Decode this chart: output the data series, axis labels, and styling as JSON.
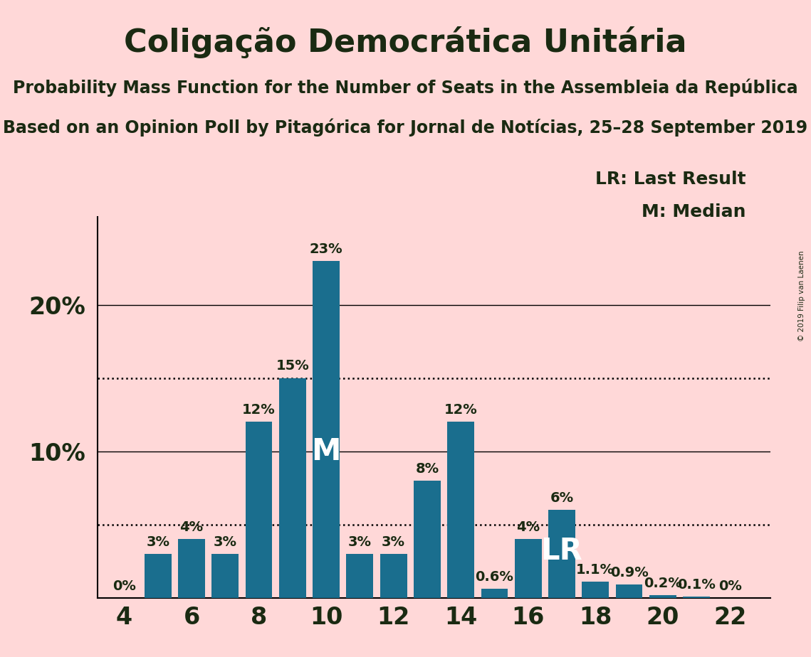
{
  "title": "Coligação Democrática Unitária",
  "subtitle1": "Probability Mass Function for the Number of Seats in the Assembleia da República",
  "subtitle2": "Based on an Opinion Poll by Pitagórica for Jornal de Notícias, 25–28 September 2019",
  "copyright": "© 2019 Filip van Laenen",
  "background_color": "#ffd8d8",
  "bar_color": "#1a6e8e",
  "seats": [
    4,
    5,
    6,
    7,
    8,
    9,
    10,
    11,
    12,
    13,
    14,
    15,
    16,
    17,
    18,
    19,
    20,
    21,
    22
  ],
  "probabilities": [
    0.0,
    3.0,
    4.0,
    3.0,
    12.0,
    15.0,
    23.0,
    3.0,
    3.0,
    8.0,
    12.0,
    0.6,
    4.0,
    6.0,
    1.1,
    0.9,
    0.2,
    0.1,
    0.0
  ],
  "bar_labels": [
    "0%",
    "3%",
    "4%",
    "3%",
    "12%",
    "15%",
    "23%",
    "3%",
    "3%",
    "8%",
    "12%",
    "0.6%",
    "4%",
    "6%",
    "1.1%",
    "0.9%",
    "0.2%",
    "0.1%",
    "0%"
  ],
  "median_seat": 10,
  "lr_seat": 17,
  "dotted_lines": [
    5.0,
    15.0
  ],
  "solid_lines": [
    10.0,
    20.0
  ],
  "ylim": [
    0,
    26
  ],
  "xticks": [
    4,
    6,
    8,
    10,
    12,
    14,
    16,
    18,
    20,
    22
  ],
  "title_fontsize": 32,
  "subtitle_fontsize": 17,
  "axis_tick_fontsize": 24,
  "bar_label_fontsize": 14,
  "annotation_fontsize": 30,
  "legend_fontsize": 18,
  "lr_legend": "LR: Last Result",
  "m_legend": "M: Median",
  "text_color": "#1a2a12"
}
